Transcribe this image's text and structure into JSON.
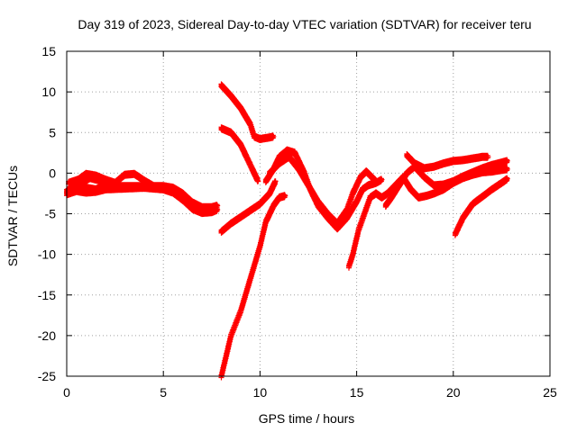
{
  "chart_data": {
    "type": "scatter",
    "title": "Day 319 of 2023, Sidereal Day-to-day VTEC variation (SDTVAR) for receiver teru",
    "xlabel": "GPS time / hours",
    "ylabel": "SDTVAR / TECUs",
    "xlim": [
      0,
      25
    ],
    "ylim": [
      -25,
      15
    ],
    "xticks": [
      0,
      5,
      10,
      15,
      20,
      25
    ],
    "yticks": [
      -25,
      -20,
      -15,
      -10,
      -5,
      0,
      5,
      10,
      15
    ],
    "xtick_labels": [
      "0",
      "5",
      "10",
      "15",
      "20",
      "25"
    ],
    "ytick_labels": [
      "-25",
      "-20",
      "-15",
      "-10",
      "-5",
      "0",
      "5",
      "10",
      "15"
    ],
    "grid": true,
    "marker": "+",
    "color": "#ff0000",
    "series": [
      {
        "name": "arc-1",
        "points": [
          [
            0,
            -2.2
          ],
          [
            0.5,
            -1.5
          ],
          [
            1,
            -1.8
          ],
          [
            1.5,
            -2
          ],
          [
            2,
            -1.5
          ],
          [
            3,
            -1.6
          ],
          [
            4,
            -1.6
          ],
          [
            5,
            -1.6
          ],
          [
            5.5,
            -1.8
          ],
          [
            6,
            -2.5
          ],
          [
            6.5,
            -3.6
          ],
          [
            7,
            -4.2
          ],
          [
            7.5,
            -4.2
          ],
          [
            7.8,
            -4
          ]
        ]
      },
      {
        "name": "arc-2",
        "points": [
          [
            0,
            -2.6
          ],
          [
            0.5,
            -2.2
          ],
          [
            1,
            -2.4
          ],
          [
            1.5,
            -2.3
          ],
          [
            2,
            -2
          ],
          [
            3,
            -1.9
          ],
          [
            4,
            -1.8
          ],
          [
            5,
            -2
          ],
          [
            5.5,
            -2.4
          ],
          [
            6,
            -3.3
          ],
          [
            6.5,
            -4.4
          ],
          [
            7,
            -4.9
          ],
          [
            7.5,
            -4.8
          ],
          [
            7.8,
            -4.5
          ]
        ]
      },
      {
        "name": "arc-3",
        "points": [
          [
            0.1,
            -1.2
          ],
          [
            0.6,
            -0.8
          ],
          [
            1,
            -0.1
          ],
          [
            1.5,
            -0.3
          ],
          [
            2,
            -0.8
          ],
          [
            2.5,
            -1.2
          ],
          [
            3,
            -0.2
          ],
          [
            3.5,
            -0.1
          ],
          [
            4,
            -0.9
          ],
          [
            4.5,
            -1.6
          ]
        ]
      },
      {
        "name": "arc-4",
        "points": [
          [
            0.2,
            -1.8
          ],
          [
            0.7,
            -1.3
          ],
          [
            1.2,
            -0.6
          ],
          [
            1.7,
            -0.9
          ],
          [
            2.2,
            -1.3
          ],
          [
            2.6,
            -1.8
          ]
        ]
      },
      {
        "name": "arc-5",
        "points": [
          [
            8,
            10.8
          ],
          [
            8.5,
            9.5
          ],
          [
            9,
            8
          ],
          [
            9.5,
            6
          ],
          [
            9.7,
            4.5
          ],
          [
            10,
            4.2
          ],
          [
            10.5,
            4.4
          ],
          [
            10.7,
            4.5
          ]
        ]
      },
      {
        "name": "arc-6",
        "points": [
          [
            8,
            5.5
          ],
          [
            8.5,
            5
          ],
          [
            9,
            3.5
          ],
          [
            9.3,
            2
          ],
          [
            9.6,
            0.5
          ],
          [
            9.9,
            -1
          ]
        ]
      },
      {
        "name": "arc-7",
        "points": [
          [
            8,
            -7.2
          ],
          [
            8.5,
            -6.2
          ],
          [
            9,
            -5.4
          ],
          [
            9.5,
            -4.6
          ],
          [
            10,
            -3.8
          ],
          [
            10.5,
            -2.5
          ],
          [
            10.8,
            -1
          ]
        ]
      },
      {
        "name": "arc-8",
        "points": [
          [
            8,
            -25
          ],
          [
            8.5,
            -20
          ],
          [
            9,
            -17
          ],
          [
            9.5,
            -13
          ],
          [
            10,
            -9
          ],
          [
            10.3,
            -6
          ],
          [
            10.7,
            -4
          ],
          [
            11,
            -3
          ],
          [
            11.3,
            -2.8
          ]
        ]
      },
      {
        "name": "arc-9",
        "points": [
          [
            10.3,
            -1
          ],
          [
            10.7,
            0.5
          ],
          [
            11,
            2
          ],
          [
            11.4,
            2.8
          ],
          [
            11.8,
            2.5
          ],
          [
            12,
            1.5
          ],
          [
            12.3,
            0
          ],
          [
            12.6,
            -2
          ],
          [
            13,
            -4
          ],
          [
            13.5,
            -5.5
          ],
          [
            14,
            -6.8
          ],
          [
            14.5,
            -5.5
          ],
          [
            15,
            -3.5
          ],
          [
            15.3,
            -2
          ],
          [
            15.6,
            -1.5
          ],
          [
            16,
            -1.2
          ],
          [
            16.3,
            -0.8
          ]
        ]
      },
      {
        "name": "arc-10",
        "points": [
          [
            10.5,
            0
          ],
          [
            11,
            1.2
          ],
          [
            11.5,
            2
          ],
          [
            12,
            0.5
          ],
          [
            12.5,
            -1.5
          ],
          [
            13,
            -3.5
          ],
          [
            13.5,
            -5
          ],
          [
            14,
            -6.2
          ],
          [
            14.5,
            -4.5
          ],
          [
            14.8,
            -2.5
          ],
          [
            15.2,
            -0.5
          ],
          [
            15.5,
            0.2
          ],
          [
            16,
            -1
          ]
        ]
      },
      {
        "name": "arc-11",
        "points": [
          [
            14.6,
            -11.5
          ],
          [
            14.8,
            -10
          ],
          [
            15.1,
            -7
          ],
          [
            15.4,
            -5
          ],
          [
            15.7,
            -3
          ],
          [
            16,
            -2.5
          ],
          [
            16.3,
            -3
          ],
          [
            16.6,
            -2.5
          ],
          [
            17,
            -1.5
          ],
          [
            17.4,
            -0.5
          ],
          [
            17.8,
            -2
          ],
          [
            18.2,
            -3
          ],
          [
            18.6,
            -2.8
          ],
          [
            19,
            -2.5
          ],
          [
            19.5,
            -2
          ],
          [
            20,
            -1.2
          ],
          [
            20.5,
            -0.6
          ],
          [
            21,
            -0.2
          ],
          [
            21.5,
            0.1
          ],
          [
            22,
            0.2
          ],
          [
            22.5,
            0.4
          ],
          [
            22.8,
            0.5
          ]
        ]
      },
      {
        "name": "arc-12",
        "points": [
          [
            16.5,
            -4
          ],
          [
            16.8,
            -3
          ],
          [
            17.2,
            -1.5
          ],
          [
            17.6,
            0
          ],
          [
            18,
            0.8
          ],
          [
            18.5,
            -0.5
          ],
          [
            19,
            -1.5
          ],
          [
            19.5,
            -1.4
          ],
          [
            20,
            -1
          ],
          [
            20.5,
            -0.4
          ],
          [
            21,
            0.1
          ],
          [
            21.5,
            0.6
          ],
          [
            22,
            1
          ],
          [
            22.5,
            1.3
          ],
          [
            22.8,
            1.5
          ]
        ]
      },
      {
        "name": "arc-13",
        "points": [
          [
            17.6,
            2.2
          ],
          [
            18,
            1.2
          ],
          [
            18.5,
            0.6
          ],
          [
            19,
            0.8
          ],
          [
            19.5,
            1.2
          ],
          [
            20,
            1.5
          ],
          [
            20.5,
            1.6
          ],
          [
            21,
            1.8
          ],
          [
            21.5,
            2
          ],
          [
            21.8,
            2
          ]
        ]
      },
      {
        "name": "arc-14",
        "points": [
          [
            20.1,
            -7.5
          ],
          [
            20.5,
            -5.5
          ],
          [
            21,
            -3.8
          ],
          [
            21.5,
            -2.9
          ],
          [
            22,
            -2
          ],
          [
            22.5,
            -1.2
          ],
          [
            22.8,
            -0.7
          ]
        ]
      }
    ]
  }
}
